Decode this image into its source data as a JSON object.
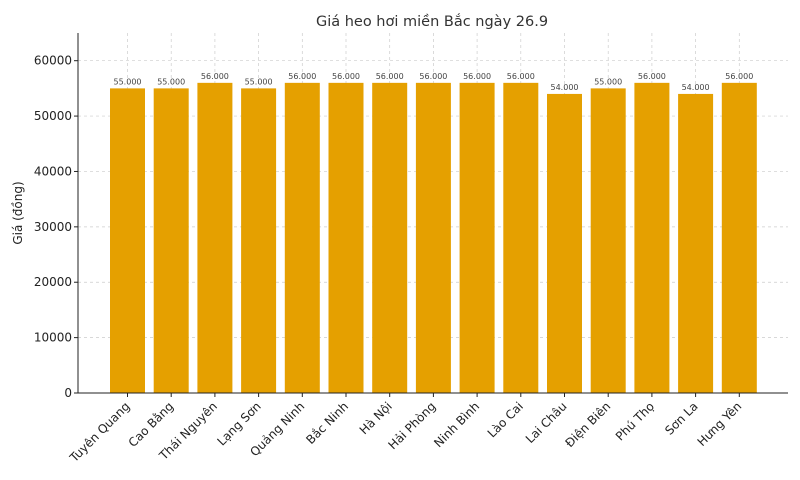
{
  "chart_data": {
    "type": "bar",
    "title": "Giá heo hơi miền Bắc ngày 26.9",
    "xlabel": "",
    "ylabel": "Giá (đồng)",
    "ylim": [
      0,
      65000
    ],
    "yticks": [
      0,
      10000,
      20000,
      30000,
      40000,
      50000,
      60000
    ],
    "grid": true,
    "bar_color": "#E5A000",
    "categories": [
      "Tuyên Quang",
      "Cao Bằng",
      "Thái Nguyên",
      "Lạng Sơn",
      "Quảng Ninh",
      "Bắc Ninh",
      "Hà Nội",
      "Hải Phòng",
      "Ninh Bình",
      "Lào Cai",
      "Lai Châu",
      "Điện Biên",
      "Phú Thọ",
      "Sơn La",
      "Hưng Yên"
    ],
    "values": [
      55000,
      55000,
      56000,
      55000,
      56000,
      56000,
      56000,
      56000,
      56000,
      56000,
      54000,
      55000,
      56000,
      54000,
      56000
    ],
    "data_labels": [
      "55.000",
      "55.000",
      "56.000",
      "55.000",
      "56.000",
      "56.000",
      "56.000",
      "56.000",
      "56.000",
      "56.000",
      "54.000",
      "55.000",
      "56.000",
      "54.000",
      "56.000"
    ]
  }
}
